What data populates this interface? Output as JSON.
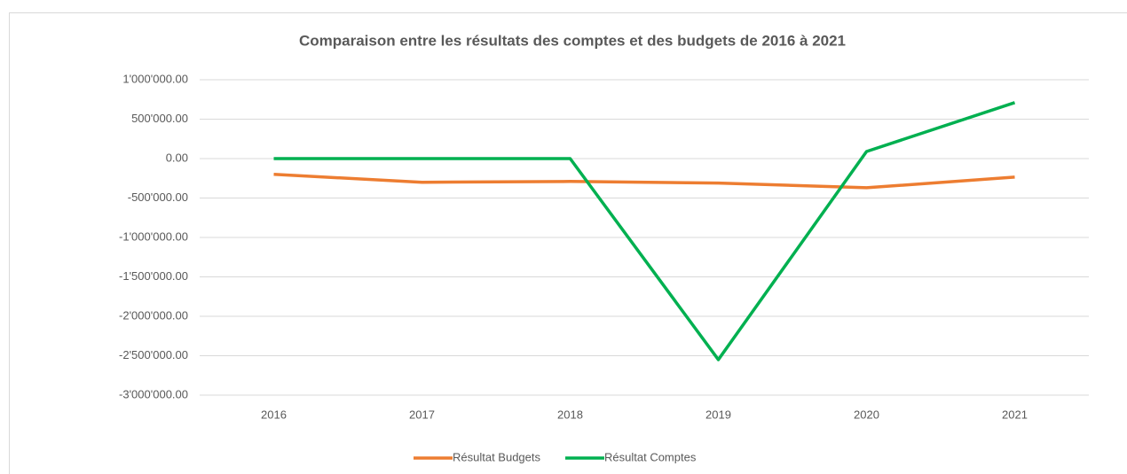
{
  "chart_data": {
    "type": "line",
    "title": "Comparaison  entre les résultats des comptes et des budgets de 2016 à 2021",
    "categories": [
      "2016",
      "2017",
      "2018",
      "2019",
      "2020",
      "2021"
    ],
    "series": [
      {
        "name": "Résultat Budgets",
        "color": "#ed7d31",
        "values": [
          -200000,
          -300000,
          -290000,
          -310000,
          -370000,
          -235000
        ]
      },
      {
        "name": "Résultat Comptes",
        "color": "#00b050",
        "values": [
          0,
          0,
          0,
          -2550000,
          90000,
          710000
        ]
      }
    ],
    "ylim": [
      -3000000,
      1000000
    ],
    "yticks": [
      {
        "value": -3000000,
        "label": "-3'000'000.00"
      },
      {
        "value": -2500000,
        "label": "-2'500'000.00"
      },
      {
        "value": -2000000,
        "label": "-2'000'000.00"
      },
      {
        "value": -1500000,
        "label": "-1'500'000.00"
      },
      {
        "value": -1000000,
        "label": "-1'000'000.00"
      },
      {
        "value": -500000,
        "label": "-500'000.00"
      },
      {
        "value": 0,
        "label": "0.00"
      },
      {
        "value": 500000,
        "label": "500'000.00"
      },
      {
        "value": 1000000,
        "label": "1'000'000.00"
      }
    ],
    "grid": true,
    "legend": "bottom"
  }
}
